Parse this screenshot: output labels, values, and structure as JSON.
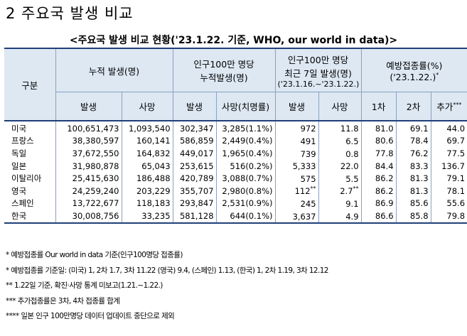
{
  "section_title": "2  주요국 발생 비교",
  "caption": "<주요국 발생 비교 현황('23.1.22. 기준, WHO, our world in data)>",
  "header": {
    "group": "구분",
    "cumulative": "누적 발생(명)",
    "per_million_1": "인구100만 명당",
    "per_million_2": "누적발생(명)",
    "recent_1": "인구100만 명당",
    "recent_2": "최근 7일 발생(명)",
    "recent_3": "('23.1.16.~'23.1.22.)",
    "vacc_1": "예방접종률(%)",
    "vacc_2": "('23.1.22.)",
    "vacc_mark": "*",
    "sub": [
      "발생",
      "사망",
      "발생",
      "사망(치명률)",
      "발생",
      "사망",
      "1차",
      "2차",
      "추가"
    ],
    "sub_extra_mark": "***"
  },
  "rows": [
    {
      "country": "미국",
      "cases": "100,651,473",
      "deaths": "1,093,540",
      "pm_cases": "302,347",
      "pm_deaths": "3,285(1.1%)",
      "r_cases": "972",
      "r_cases_mark": "",
      "r_deaths": "11.8",
      "r_deaths_mark": "",
      "v1": "81.0",
      "v2": "69.1",
      "v3": "44.0"
    },
    {
      "country": "프랑스",
      "cases": "38,380,597",
      "deaths": "160,141",
      "pm_cases": "586,859",
      "pm_deaths": "2,449(0.4%)",
      "r_cases": "491",
      "r_cases_mark": "",
      "r_deaths": "6.5",
      "r_deaths_mark": "",
      "v1": "80.6",
      "v2": "78.4",
      "v3": "69.7"
    },
    {
      "country": "독일",
      "cases": "37,672,550",
      "deaths": "164,832",
      "pm_cases": "449,017",
      "pm_deaths": "1,965(0.4%)",
      "r_cases": "739",
      "r_cases_mark": "",
      "r_deaths": "0.8",
      "r_deaths_mark": "",
      "v1": "77.8",
      "v2": "76.2",
      "v3": "77.5"
    },
    {
      "country": "일본",
      "cases": "31,980,878",
      "deaths": "65,043",
      "pm_cases": "253,615",
      "pm_deaths": "516(0.2%)",
      "r_cases": "5,333",
      "r_cases_mark": "",
      "r_deaths": "22.0",
      "r_deaths_mark": "",
      "v1": "84.4",
      "v2": "83.3",
      "v3": "136.7"
    },
    {
      "country": "이탈리아",
      "cases": "25,415,630",
      "deaths": "186,488",
      "pm_cases": "420,789",
      "pm_deaths": "3,088(0.7%)",
      "r_cases": "575",
      "r_cases_mark": "",
      "r_deaths": "5.5",
      "r_deaths_mark": "",
      "v1": "86.2",
      "v2": "81.3",
      "v3": "79.1"
    },
    {
      "country": "영국",
      "cases": "24,259,240",
      "deaths": "203,229",
      "pm_cases": "355,707",
      "pm_deaths": "2,980(0.8%)",
      "r_cases": "112",
      "r_cases_mark": "**",
      "r_deaths": "2.7",
      "r_deaths_mark": "**",
      "v1": "86.2",
      "v2": "81.3",
      "v3": "78.1"
    },
    {
      "country": "스페인",
      "cases": "13,722,677",
      "deaths": "118,183",
      "pm_cases": "293,847",
      "pm_deaths": "2,531(0.9%)",
      "r_cases": "245",
      "r_cases_mark": "",
      "r_deaths": "9.1",
      "r_deaths_mark": "",
      "v1": "86.9",
      "v2": "85.6",
      "v3": "55.6"
    },
    {
      "country": "한국",
      "cases": "30,008,756",
      "deaths": "33,235",
      "pm_cases": "581,128",
      "pm_deaths": "644(0.1%)",
      "r_cases": "3,637",
      "r_cases_mark": "",
      "r_deaths": "4.9",
      "r_deaths_mark": "",
      "v1": "86.6",
      "v2": "85.8",
      "v3": "79.8"
    }
  ],
  "notes": [
    "* 예방접종률 Our world in data 기준(인구100명당 접종률)",
    "* 예방접종률 기준일: (미국) 1, 2차 1.7, 3차 11.22 (영국) 9.4, (스페인) 1.13, (한국) 1, 2차 1.19, 3차 12.12",
    "** 1.22일 기준, 확진·사망 통계 미보고(1.21.~1.22.)",
    "*** 추가접종률은 3차, 4차 접종률 합계",
    "**** 일본 인구 100만명당 데이터 업데이트 중단으로 제외"
  ]
}
